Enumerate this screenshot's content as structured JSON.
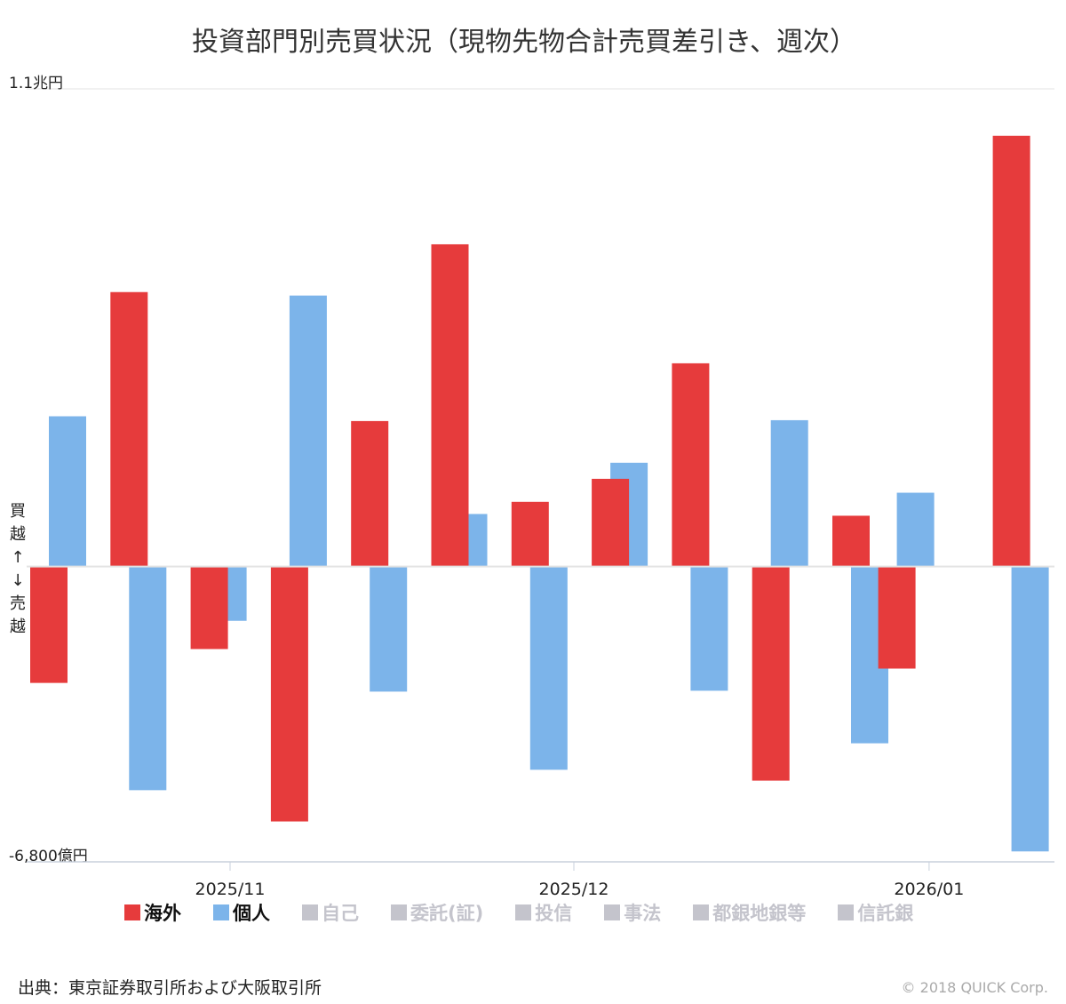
{
  "chart_data": {
    "type": "bar",
    "title": "投資部門別売買状況（現物先物合計売買差引き、週次）",
    "ylabel_top": "1.1兆円",
    "ylabel_bottom": "-6,800億円",
    "side_label_up": [
      "買",
      "越",
      "↑"
    ],
    "side_label_down": [
      "↓",
      "売",
      "越"
    ],
    "ylim": [
      -6800,
      11000
    ],
    "unit": "億円",
    "x_ticks": [
      {
        "label": "2025/11",
        "date": "2025-11-01"
      },
      {
        "label": "2025/12",
        "date": "2025-12-01"
      },
      {
        "label": "2026/01",
        "date": "2026-01-01"
      }
    ],
    "dates": [
      "2025-10-17",
      "2025-10-24",
      "2025-10-31",
      "2025-11-07",
      "2025-11-14",
      "2025-11-21",
      "2025-11-28",
      "2025-12-05",
      "2025-12-12",
      "2025-12-19",
      "2025-12-26",
      "2025-12-30",
      "2026-01-09"
    ],
    "series": [
      {
        "name": "海外",
        "color": "#e63b3c",
        "values": [
          -2680,
          6320,
          -1900,
          -5870,
          3350,
          7420,
          1490,
          2020,
          4680,
          -4930,
          1170,
          -2350,
          9920
        ]
      },
      {
        "name": "個人",
        "color": "#7cb4ea",
        "values": [
          3460,
          -5150,
          -1250,
          6240,
          -2880,
          1210,
          -4680,
          2390,
          -2860,
          3370,
          -4070,
          1700,
          -6560
        ]
      }
    ],
    "legend": [
      {
        "name": "海外",
        "color": "#e63b3c",
        "active": true
      },
      {
        "name": "個人",
        "color": "#7cb4ea",
        "active": true
      },
      {
        "name": "自己",
        "color": "#c4c4cc",
        "active": false
      },
      {
        "name": "委託(証)",
        "color": "#c4c4cc",
        "active": false
      },
      {
        "name": "投信",
        "color": "#c4c4cc",
        "active": false
      },
      {
        "name": "事法",
        "color": "#c4c4cc",
        "active": false
      },
      {
        "name": "都銀地銀等",
        "color": "#c4c4cc",
        "active": false
      },
      {
        "name": "信託銀",
        "color": "#c4c4cc",
        "active": false
      }
    ],
    "legend_position": "bottom"
  },
  "source": "出典：東京証券取引所および大阪取引所",
  "copyright": "© 2018 QUICK Corp."
}
